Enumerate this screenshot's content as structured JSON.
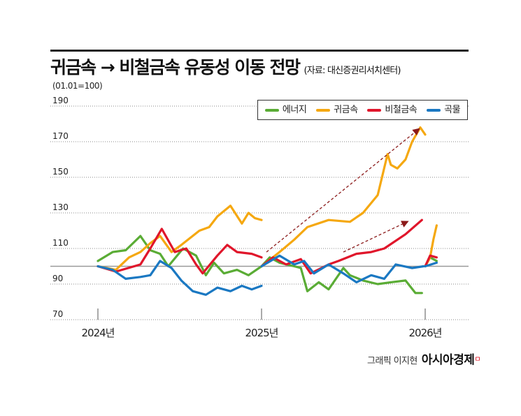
{
  "header": {
    "title": "귀금속 → 비철금속 유동성 이동 전망",
    "source": "(자료: 대신증권리서치센터)"
  },
  "credit": {
    "text": "그래픽 이지현",
    "brand": "아시아경제",
    "brand_mark": "ㅁ"
  },
  "chart_data": {
    "type": "line",
    "title": "귀금속 → 비철금속 유동성 이동 전망",
    "unit_label": "(01.01=100)",
    "ylim": [
      70,
      190
    ],
    "yticks": [
      "190",
      "170",
      "150",
      "130",
      "110",
      "90",
      "70"
    ],
    "ytick_values": [
      190,
      170,
      150,
      130,
      110,
      90,
      70
    ],
    "reference_line": 100,
    "xlim": [
      2024,
      2026.2
    ],
    "xticks": [
      "2024년",
      "2025년",
      "2026년"
    ],
    "xtick_values": [
      2024,
      2025,
      2026
    ],
    "grid": "dotted horizontal",
    "legend_position": "top-right",
    "series": [
      {
        "name": "에너지",
        "color": "#5aac35",
        "segments": [
          [
            [
              2024.0,
              103
            ],
            [
              2024.09,
              108
            ],
            [
              2024.17,
              109
            ],
            [
              2024.26,
              117
            ],
            [
              2024.32,
              109
            ],
            [
              2024.38,
              107
            ],
            [
              2024.43,
              100
            ],
            [
              2024.52,
              110
            ],
            [
              2024.6,
              106
            ],
            [
              2024.66,
              95
            ],
            [
              2024.71,
              102
            ],
            [
              2024.77,
              96
            ],
            [
              2024.85,
              98
            ],
            [
              2024.92,
              95
            ],
            [
              2025.0,
              100
            ]
          ],
          [
            [
              2025.0,
              100
            ],
            [
              2025.05,
              105
            ],
            [
              2025.11,
              102
            ],
            [
              2025.2,
              100
            ],
            [
              2025.24,
              99
            ],
            [
              2025.28,
              86
            ],
            [
              2025.35,
              91
            ],
            [
              2025.41,
              87
            ],
            [
              2025.5,
              99
            ],
            [
              2025.54,
              95
            ],
            [
              2025.62,
              92
            ],
            [
              2025.71,
              90
            ],
            [
              2025.79,
              91
            ],
            [
              2025.88,
              92
            ],
            [
              2025.94,
              85
            ],
            [
              2025.98,
              85
            ]
          ],
          [
            [
              2026.0,
              100
            ],
            [
              2026.03,
              105
            ],
            [
              2026.07,
              103
            ]
          ]
        ]
      },
      {
        "name": "귀금속",
        "color": "#f5a811",
        "segments": [
          [
            [
              2024.0,
              100
            ],
            [
              2024.11,
              98
            ],
            [
              2024.19,
              105
            ],
            [
              2024.26,
              108
            ],
            [
              2024.32,
              113
            ],
            [
              2024.38,
              117
            ],
            [
              2024.45,
              108
            ],
            [
              2024.51,
              112
            ],
            [
              2024.62,
              120
            ],
            [
              2024.68,
              122
            ],
            [
              2024.73,
              128
            ],
            [
              2024.81,
              134
            ],
            [
              2024.88,
              124
            ],
            [
              2024.92,
              130
            ],
            [
              2024.96,
              127
            ],
            [
              2025.0,
              126
            ]
          ],
          [
            [
              2025.0,
              100
            ],
            [
              2025.11,
              108
            ],
            [
              2025.2,
              115
            ],
            [
              2025.28,
              122
            ],
            [
              2025.41,
              126
            ],
            [
              2025.54,
              125
            ],
            [
              2025.62,
              130
            ],
            [
              2025.71,
              140
            ],
            [
              2025.77,
              163
            ],
            [
              2025.79,
              157
            ],
            [
              2025.83,
              155
            ],
            [
              2025.88,
              160
            ],
            [
              2025.92,
              170
            ],
            [
              2025.97,
              178
            ],
            [
              2026.0,
              174
            ]
          ],
          [
            [
              2026.0,
              100
            ],
            [
              2026.03,
              105
            ],
            [
              2026.05,
              115
            ],
            [
              2026.07,
              123
            ]
          ]
        ]
      },
      {
        "name": "비철금속",
        "color": "#e0162b",
        "segments": [
          [
            [
              2024.0,
              100
            ],
            [
              2024.11,
              97
            ],
            [
              2024.26,
              101
            ],
            [
              2024.32,
              110
            ],
            [
              2024.39,
              121
            ],
            [
              2024.47,
              108
            ],
            [
              2024.54,
              110
            ],
            [
              2024.6,
              101
            ],
            [
              2024.64,
              96
            ],
            [
              2024.73,
              106
            ],
            [
              2024.79,
              112
            ],
            [
              2024.85,
              108
            ],
            [
              2024.94,
              107
            ],
            [
              2025.0,
              105
            ]
          ],
          [
            [
              2025.0,
              100
            ],
            [
              2025.07,
              105
            ],
            [
              2025.15,
              101
            ],
            [
              2025.24,
              104
            ],
            [
              2025.3,
              96
            ],
            [
              2025.41,
              101
            ],
            [
              2025.47,
              103
            ],
            [
              2025.58,
              107
            ],
            [
              2025.67,
              108
            ],
            [
              2025.75,
              110
            ],
            [
              2025.88,
              118
            ],
            [
              2025.98,
              126
            ]
          ],
          [
            [
              2026.0,
              100
            ],
            [
              2026.03,
              106
            ],
            [
              2026.07,
              105
            ]
          ]
        ]
      },
      {
        "name": "곡물",
        "color": "#1a78c2",
        "segments": [
          [
            [
              2024.0,
              100
            ],
            [
              2024.09,
              98
            ],
            [
              2024.17,
              93
            ],
            [
              2024.26,
              94
            ],
            [
              2024.32,
              95
            ],
            [
              2024.38,
              103
            ],
            [
              2024.45,
              99
            ],
            [
              2024.51,
              92
            ],
            [
              2024.58,
              86
            ],
            [
              2024.66,
              84
            ],
            [
              2024.73,
              88
            ],
            [
              2024.81,
              86
            ],
            [
              2024.88,
              89
            ],
            [
              2024.94,
              87
            ],
            [
              2025.0,
              89
            ]
          ],
          [
            [
              2025.0,
              100
            ],
            [
              2025.11,
              106
            ],
            [
              2025.2,
              101
            ],
            [
              2025.26,
              103
            ],
            [
              2025.32,
              96
            ],
            [
              2025.41,
              101
            ],
            [
              2025.5,
              96
            ],
            [
              2025.58,
              91
            ],
            [
              2025.67,
              95
            ],
            [
              2025.75,
              93
            ],
            [
              2025.82,
              101
            ],
            [
              2025.92,
              99
            ],
            [
              2025.99,
              100
            ]
          ],
          [
            [
              2026.0,
              100
            ],
            [
              2026.07,
              102
            ]
          ]
        ]
      }
    ],
    "annotations": [
      {
        "type": "dashed-arrow",
        "color": "#8b1a1a",
        "from": [
          2025.03,
          108
        ],
        "to": [
          2025.96,
          177
        ]
      },
      {
        "type": "dashed-arrow",
        "color": "#8b1a1a",
        "from": [
          2025.5,
          108
        ],
        "to": [
          2025.89,
          125
        ]
      }
    ]
  }
}
